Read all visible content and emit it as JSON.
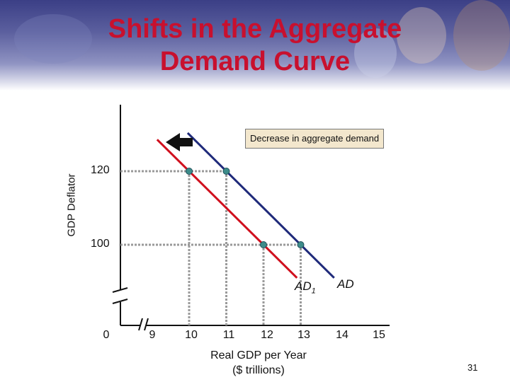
{
  "slide": {
    "title_line1": "Shifts in the Aggregate",
    "title_line2": "Demand Curve",
    "page_number": "31"
  },
  "colors": {
    "title": "#c8102e",
    "ad_original": "#1f2a7a",
    "ad_shifted": "#d0101e",
    "points": "#3d8c8a",
    "callout_bg": "#f3e7cd"
  },
  "annotation": {
    "callout": "Decrease in aggregate demand",
    "arrow_icon": "arrow-left-icon"
  },
  "chart_data": {
    "type": "line",
    "ylabel": "GDP Deflator",
    "xlabel_line1": "Real GDP per Year",
    "xlabel_line2": "($ trillions)",
    "x_ticks": [
      "0",
      "9",
      "10",
      "11",
      "12",
      "13",
      "14",
      "15"
    ],
    "y_ticks": [
      "100",
      "120"
    ],
    "axis_breaks": true,
    "series": [
      {
        "name": "AD",
        "points": [
          {
            "x": 11,
            "y": 120
          },
          {
            "x": 13,
            "y": 100
          }
        ]
      },
      {
        "name": "AD1",
        "points": [
          {
            "x": 10,
            "y": 120
          },
          {
            "x": 12,
            "y": 100
          }
        ]
      }
    ],
    "labels": {
      "ad": "AD",
      "ad1_main": "AD",
      "ad1_sub": "1"
    }
  }
}
